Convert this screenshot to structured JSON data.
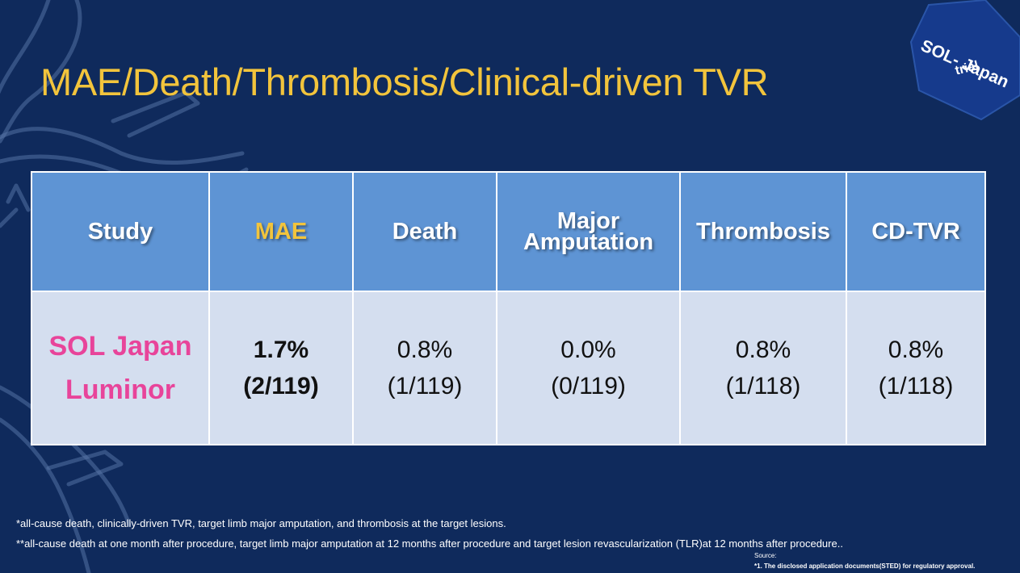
{
  "slide": {
    "title": "MAE/Death/Thrombosis/Clinical-driven TVR",
    "badge": {
      "line1": "SOL- Japan",
      "line2": "trial"
    }
  },
  "table": {
    "headers": [
      "Study",
      "MAE",
      "Death",
      [
        "Major",
        "Amputation"
      ],
      "Thrombosis",
      "CD-TVR"
    ],
    "row": {
      "study": [
        "SOL Japan",
        "Luminor"
      ],
      "mae": [
        "1.7%",
        "(2/119)"
      ],
      "death": [
        "0.8%",
        "(1/119)"
      ],
      "major_amputation": [
        "0.0%",
        "(0/119)"
      ],
      "thrombosis": [
        "0.8%",
        "(1/118)"
      ],
      "cd_tvr": [
        "0.8%",
        "(1/118)"
      ]
    }
  },
  "footnotes": {
    "note1": "*all-cause death, clinically-driven TVR, target limb major amputation, and thrombosis at the target lesions.",
    "note2": "**all-cause death at one month after procedure, target limb major amputation at 12 months after procedure and target lesion revascularization (TLR)at 12 months after procedure..",
    "source_label": "Source:",
    "source_note": "*1. The disclosed application documents(STED) for regulatory approval."
  },
  "colors": {
    "background": "#0f2a5c",
    "title": "#f2c43c",
    "header_fill": "#5e94d4",
    "body_fill": "#d4deef",
    "study_name": "#e8449a",
    "badge_fill": "#163a8c"
  }
}
